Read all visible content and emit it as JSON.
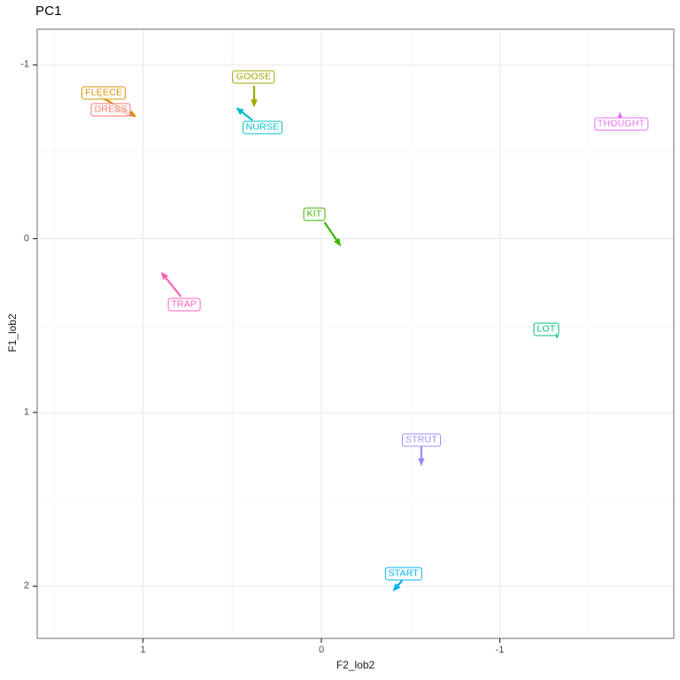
{
  "title": "PC1",
  "axes": {
    "x": {
      "label": "F2_lob2",
      "range": [
        1.593,
        -1.975
      ],
      "ticks": [
        {
          "v": 1,
          "t": "1"
        },
        {
          "v": 0,
          "t": "0"
        },
        {
          "v": -1,
          "t": "-1"
        }
      ],
      "minor": [
        1.5,
        0.5,
        -0.5,
        -1.5
      ],
      "reversed": true
    },
    "y": {
      "label": "F1_lob2",
      "range": [
        -1.205,
        2.3
      ],
      "ticks": [
        {
          "v": -1,
          "t": "-1"
        },
        {
          "v": 0,
          "t": "0"
        },
        {
          "v": 1,
          "t": "1"
        },
        {
          "v": 2,
          "t": "2"
        }
      ],
      "minor": [
        -0.5,
        0.5,
        1.5
      ],
      "reversed": true
    }
  },
  "chart_data": {
    "type": "scatter",
    "title": "PC1",
    "xlabel": "F2_lob2",
    "ylabel": "F1_lob2",
    "xlim": [
      1.59,
      -1.98
    ],
    "ylim": [
      -1.21,
      2.3
    ],
    "grid": "major and minor, light gray on white panel",
    "note": "Vowel PCA trajectory plot; both axes reversed; each boxed vowel label has an arrow showing trajectory direction toward the arrowhead",
    "series": [
      {
        "name": "FLEECE",
        "color": "#D89000",
        "label_x": 1.22,
        "label_y": -0.84,
        "arrow": {
          "x1": 1.245,
          "y1": -0.82,
          "x2": 1.035,
          "y2": -0.7
        }
      },
      {
        "name": "DRESS",
        "color": "#F8766D",
        "label_x": 1.18,
        "label_y": -0.74,
        "arrow": {
          "x1": 1.16,
          "y1": -0.745,
          "x2": 1.055,
          "y2": -0.705
        }
      },
      {
        "name": "GOOSE",
        "color": "#A3A500",
        "label_x": 0.38,
        "label_y": -0.93,
        "arrow": {
          "x1": 0.377,
          "y1": -0.875,
          "x2": 0.377,
          "y2": -0.755
        }
      },
      {
        "name": "NURSE",
        "color": "#00BFC4",
        "label_x": 0.33,
        "label_y": -0.64,
        "arrow": {
          "x1": 0.39,
          "y1": -0.685,
          "x2": 0.48,
          "y2": -0.755
        }
      },
      {
        "name": "KIT",
        "color": "#39B600",
        "label_x": 0.04,
        "label_y": -0.14,
        "arrow": {
          "x1": -0.02,
          "y1": -0.09,
          "x2": -0.11,
          "y2": 0.045
        }
      },
      {
        "name": "TRAP",
        "color": "#FF62BC",
        "label_x": 0.77,
        "label_y": 0.38,
        "arrow": {
          "x1": 0.79,
          "y1": 0.33,
          "x2": 0.9,
          "y2": 0.19
        }
      },
      {
        "name": "LOT",
        "color": "#00BF7D",
        "label_x": -1.26,
        "label_y": 0.52,
        "arrow": {
          "x1": -1.315,
          "y1": 0.545,
          "x2": -1.325,
          "y2": 0.575
        }
      },
      {
        "name": "THOUGHT",
        "color": "#E76BF3",
        "label_x": -1.68,
        "label_y": -0.66,
        "arrow": {
          "x1": -1.675,
          "y1": -0.695,
          "x2": -1.672,
          "y2": -0.73
        }
      },
      {
        "name": "STRUT",
        "color": "#9590FF",
        "label_x": -0.56,
        "label_y": 1.16,
        "arrow": {
          "x1": -0.56,
          "y1": 1.2,
          "x2": -0.56,
          "y2": 1.31
        }
      },
      {
        "name": "START",
        "color": "#00B0F6",
        "label_x": -0.46,
        "label_y": 1.93,
        "arrow": {
          "x1": -0.45,
          "y1": 1.97,
          "x2": -0.4,
          "y2": 2.03
        }
      }
    ]
  },
  "style": {
    "grid_major": "#e8e8e8",
    "grid_minor": "#f4f4f4",
    "panel_border": "#858585",
    "tick_color": "#333333",
    "tick_label_color": "#4d4d4d",
    "title_color": "#000000",
    "label_fill": "rgba(255,255,255,0.72)"
  }
}
